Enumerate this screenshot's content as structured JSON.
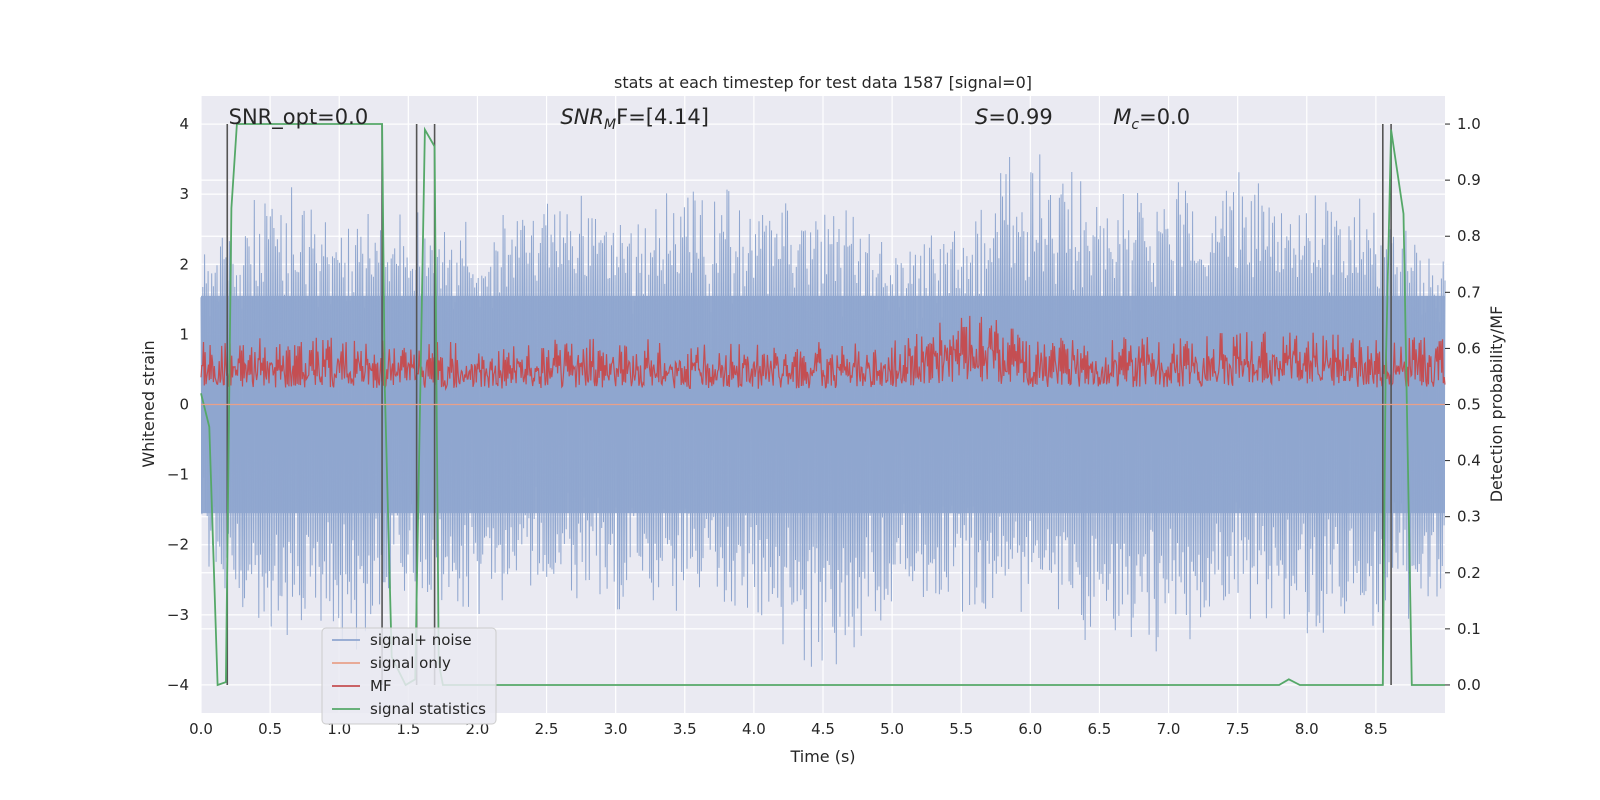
{
  "chart_data": {
    "type": "line",
    "title": "stats at each timestep for test data 1587 [signal=0]",
    "xlabel": "Time (s)",
    "ylabel": "Whitened strain",
    "ylabel_right": "Detection probability/MF",
    "xlim": [
      0.0,
      9.0
    ],
    "ylim": [
      -4.4,
      4.4
    ],
    "ylim_right": [
      -0.05,
      1.05
    ],
    "x_ticks": [
      "0.0",
      "0.5",
      "1.0",
      "1.5",
      "2.0",
      "2.5",
      "3.0",
      "3.5",
      "4.0",
      "4.5",
      "5.0",
      "5.5",
      "6.0",
      "6.5",
      "7.0",
      "7.5",
      "8.0",
      "8.5"
    ],
    "x_tick_values": [
      0,
      0.5,
      1,
      1.5,
      2,
      2.5,
      3,
      3.5,
      4,
      4.5,
      5,
      5.5,
      6,
      6.5,
      7,
      7.5,
      8,
      8.5
    ],
    "y_ticks": [
      "−4",
      "−3",
      "−2",
      "−1",
      "0",
      "1",
      "2",
      "3",
      "4"
    ],
    "y_tick_values": [
      -4,
      -3,
      -2,
      -1,
      0,
      1,
      2,
      3,
      4
    ],
    "y_right_ticks": [
      "0.0",
      "0.1",
      "0.2",
      "0.3",
      "0.4",
      "0.5",
      "0.6",
      "0.7",
      "0.8",
      "0.9",
      "1.0"
    ],
    "y_right_tick_values": [
      0,
      0.1,
      0.2,
      0.3,
      0.4,
      0.5,
      0.6,
      0.7,
      0.8,
      0.9,
      1.0
    ],
    "grid": true,
    "legend_position": "lower-left",
    "annotations": {
      "snr_opt": "SNR_opt=0.0",
      "snr_mf_sym": "SNR",
      "snr_mf_sub": "M",
      "snr_mf_rest": "F=[4.14]",
      "s_sym": "S",
      "s_rest": "=0.99",
      "mc_sym": "M",
      "mc_sub": "c",
      "mc_rest": "=0.0"
    },
    "annotation_x": {
      "snr_opt": 0.2,
      "snr_mf": 2.6,
      "s": 5.6,
      "mc": 6.6
    },
    "series": [
      {
        "name": "signal+ noise",
        "color": "#8fa6cf",
        "axis": "left",
        "description": "noise envelope",
        "x": [
          0.0,
          0.5,
          1.0,
          1.5,
          2.0,
          2.5,
          3.0,
          3.5,
          4.0,
          4.5,
          5.0,
          5.5,
          6.0,
          6.5,
          7.0,
          7.5,
          8.0,
          8.5,
          9.0
        ],
        "upper": [
          2.3,
          3.3,
          3.0,
          2.8,
          2.7,
          3.5,
          3.0,
          3.2,
          3.2,
          3.1,
          2.6,
          2.7,
          3.9,
          3.1,
          3.3,
          3.4,
          3.0,
          3.2,
          2.2
        ],
        "lower": [
          -2.5,
          -3.5,
          -3.7,
          -3.0,
          -3.2,
          -2.8,
          -3.2,
          -3.0,
          -3.5,
          -4.0,
          -3.2,
          -3.0,
          -3.3,
          -3.4,
          -3.8,
          -3.2,
          -3.4,
          -3.3,
          -3.2
        ]
      },
      {
        "name": "signal only",
        "color": "#e8a08a",
        "axis": "left",
        "x": [
          0.0,
          9.0
        ],
        "y": [
          0.0,
          0.0
        ]
      },
      {
        "name": "MF",
        "color": "#c44e52",
        "axis": "right",
        "x": [
          0.0,
          1.0,
          2.0,
          3.0,
          4.0,
          5.0,
          5.6,
          6.0,
          7.0,
          7.8,
          8.5,
          9.0
        ],
        "upper": [
          0.62,
          0.62,
          0.61,
          0.62,
          0.61,
          0.62,
          0.67,
          0.62,
          0.62,
          0.64,
          0.62,
          0.62
        ],
        "lower": [
          0.5,
          0.5,
          0.5,
          0.5,
          0.5,
          0.5,
          0.5,
          0.5,
          0.5,
          0.5,
          0.5,
          0.5
        ]
      },
      {
        "name": "signal statistics",
        "color": "#55a868",
        "axis": "right",
        "x": [
          0.0,
          0.06,
          0.12,
          0.18,
          0.22,
          0.26,
          1.31,
          1.33,
          1.38,
          1.48,
          1.55,
          1.62,
          1.69,
          1.72,
          1.75,
          7.8,
          7.87,
          7.95,
          8.55,
          8.57,
          8.61,
          8.7,
          8.76,
          9.0
        ],
        "y": [
          0.52,
          0.46,
          0.0,
          0.005,
          0.85,
          1.0,
          1.0,
          0.53,
          0.05,
          0.0,
          0.01,
          0.99,
          0.96,
          0.04,
          0.0,
          0.0,
          0.01,
          0.0,
          0.0,
          0.55,
          0.99,
          0.84,
          0.0,
          0.0
        ]
      }
    ],
    "vertical_lines": [
      0.19,
      1.31,
      1.56,
      1.69,
      8.55,
      8.61
    ],
    "vertical_line_color": "#555555"
  }
}
